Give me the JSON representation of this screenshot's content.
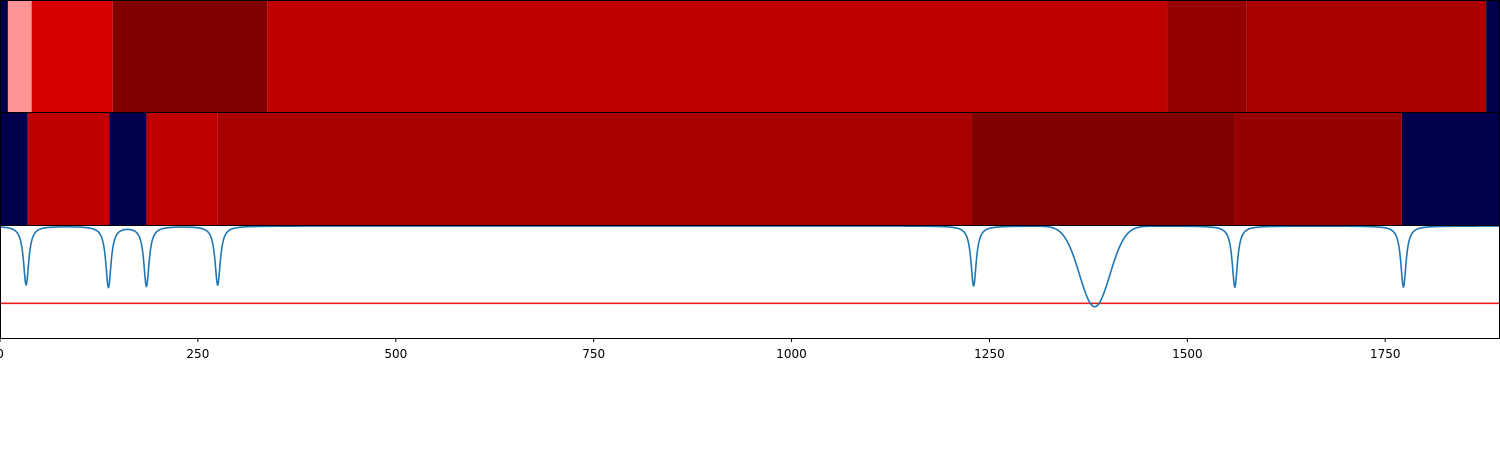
{
  "chart_data": [
    {
      "type": "heatmap",
      "panel": "segment-track-1",
      "colormap": "seismic",
      "xlim": [
        0,
        1895
      ],
      "segments": [
        {
          "start": 0,
          "end": 20,
          "color": "#00004c"
        },
        {
          "start": 20,
          "end": 80,
          "color": "#ff9494"
        },
        {
          "start": 80,
          "end": 285,
          "color": "#da0000"
        },
        {
          "start": 285,
          "end": 675,
          "color": "#800000"
        },
        {
          "start": 675,
          "end": 2950,
          "color": "#c00000"
        },
        {
          "start": 2950,
          "end": 3150,
          "color": "#960000"
        },
        {
          "start": 3150,
          "end": 3755,
          "color": "#a80000"
        },
        {
          "start": 3755,
          "end": 3790,
          "color": "#00004c"
        }
      ],
      "x_scale": 0.5
    },
    {
      "type": "heatmap",
      "panel": "segment-track-2",
      "colormap": "seismic",
      "xlim": [
        0,
        1895
      ],
      "segments": [
        {
          "start": 0,
          "end": 35,
          "color": "#00004c"
        },
        {
          "start": 35,
          "end": 138,
          "color": "#c00000"
        },
        {
          "start": 138,
          "end": 185,
          "color": "#00004c"
        },
        {
          "start": 185,
          "end": 275,
          "color": "#c00000"
        },
        {
          "start": 275,
          "end": 1228,
          "color": "#a80000"
        },
        {
          "start": 1228,
          "end": 1559,
          "color": "#800000"
        },
        {
          "start": 1559,
          "end": 1771,
          "color": "#960000"
        },
        {
          "start": 1771,
          "end": 1895,
          "color": "#00004c"
        }
      ]
    },
    {
      "type": "line",
      "panel": "signal-plot",
      "xlim": [
        0,
        1895
      ],
      "ylim": [
        0,
        1
      ],
      "x_ticks": [
        0,
        250,
        500,
        750,
        1000,
        1250,
        1500,
        1750
      ],
      "x_tick_labels": [
        "0",
        "250",
        "500",
        "750",
        "1000",
        "1250",
        "1500",
        "1750"
      ],
      "threshold": 0.31,
      "threshold_color": "#e8221c",
      "line_color": "#1f77b4",
      "baseline": 1.0,
      "dips": [
        {
          "center": 33,
          "depth": 0.53,
          "width": 4
        },
        {
          "center": 137,
          "depth": 0.55,
          "width": 4
        },
        {
          "center": 185,
          "depth": 0.54,
          "width": 4
        },
        {
          "center": 275,
          "depth": 0.53,
          "width": 4
        },
        {
          "center": 1230,
          "depth": 0.54,
          "width": 4
        },
        {
          "center": 1560,
          "depth": 0.55,
          "width": 4
        },
        {
          "center": 1773,
          "depth": 0.55,
          "width": 4
        }
      ],
      "broad_dip": {
        "center": 1383,
        "depth": 0.72,
        "width": 40
      },
      "x_sample_step": 1
    }
  ]
}
